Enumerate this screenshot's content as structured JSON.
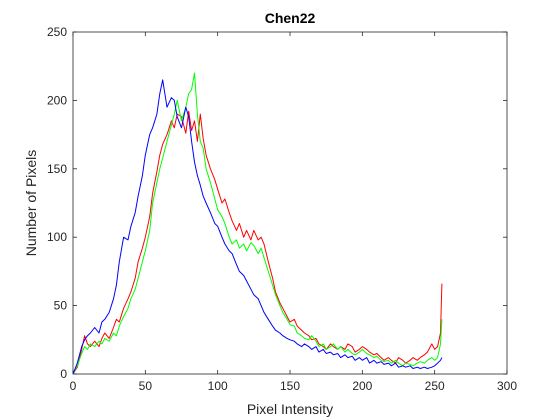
{
  "chart_data": {
    "type": "line",
    "title": "Chen22",
    "xlabel": "Pixel Intensity",
    "ylabel": "Number of Pixels",
    "xlim": [
      0,
      300
    ],
    "ylim": [
      0,
      250
    ],
    "xticks": [
      0,
      50,
      100,
      150,
      200,
      250,
      300
    ],
    "yticks": [
      0,
      50,
      100,
      150,
      200,
      250
    ],
    "xtick_labels": [
      "0",
      "50",
      "100",
      "150",
      "200",
      "250",
      "300"
    ],
    "ytick_labels": [
      "0",
      "50",
      "100",
      "150",
      "200",
      "250"
    ],
    "grid": false,
    "legend": "none",
    "series": [
      {
        "color": "#ff0000",
        "points": [
          [
            0,
            0
          ],
          [
            3,
            5
          ],
          [
            6,
            18
          ],
          [
            8,
            28
          ],
          [
            10,
            22
          ],
          [
            12,
            20
          ],
          [
            15,
            24
          ],
          [
            18,
            20
          ],
          [
            20,
            26
          ],
          [
            22,
            30
          ],
          [
            25,
            26
          ],
          [
            28,
            34
          ],
          [
            30,
            40
          ],
          [
            32,
            38
          ],
          [
            35,
            48
          ],
          [
            38,
            55
          ],
          [
            40,
            60
          ],
          [
            43,
            70
          ],
          [
            45,
            82
          ],
          [
            48,
            92
          ],
          [
            50,
            100
          ],
          [
            53,
            115
          ],
          [
            55,
            132
          ],
          [
            58,
            148
          ],
          [
            60,
            160
          ],
          [
            62,
            168
          ],
          [
            65,
            175
          ],
          [
            68,
            185
          ],
          [
            70,
            180
          ],
          [
            72,
            190
          ],
          [
            75,
            188
          ],
          [
            78,
            176
          ],
          [
            80,
            192
          ],
          [
            82,
            178
          ],
          [
            84,
            185
          ],
          [
            86,
            170
          ],
          [
            88,
            190
          ],
          [
            90,
            172
          ],
          [
            92,
            160
          ],
          [
            95,
            150
          ],
          [
            98,
            142
          ],
          [
            100,
            135
          ],
          [
            103,
            125
          ],
          [
            105,
            128
          ],
          [
            108,
            118
          ],
          [
            110,
            112
          ],
          [
            113,
            105
          ],
          [
            115,
            110
          ],
          [
            118,
            100
          ],
          [
            120,
            105
          ],
          [
            123,
            98
          ],
          [
            125,
            105
          ],
          [
            128,
            98
          ],
          [
            130,
            100
          ],
          [
            132,
            95
          ],
          [
            135,
            82
          ],
          [
            138,
            70
          ],
          [
            140,
            60
          ],
          [
            143,
            52
          ],
          [
            145,
            48
          ],
          [
            148,
            42
          ],
          [
            150,
            38
          ],
          [
            153,
            40
          ],
          [
            155,
            35
          ],
          [
            158,
            32
          ],
          [
            160,
            30
          ],
          [
            163,
            28
          ],
          [
            165,
            25
          ],
          [
            168,
            26
          ],
          [
            170,
            22
          ],
          [
            173,
            20
          ],
          [
            175,
            18
          ],
          [
            178,
            22
          ],
          [
            180,
            20
          ],
          [
            183,
            18
          ],
          [
            185,
            20
          ],
          [
            188,
            18
          ],
          [
            190,
            22
          ],
          [
            193,
            20
          ],
          [
            195,
            16
          ],
          [
            198,
            18
          ],
          [
            200,
            20
          ],
          [
            203,
            18
          ],
          [
            205,
            16
          ],
          [
            208,
            14
          ],
          [
            210,
            15
          ],
          [
            213,
            12
          ],
          [
            215,
            10
          ],
          [
            218,
            12
          ],
          [
            220,
            10
          ],
          [
            223,
            8
          ],
          [
            225,
            12
          ],
          [
            228,
            10
          ],
          [
            230,
            8
          ],
          [
            233,
            10
          ],
          [
            235,
            12
          ],
          [
            238,
            10
          ],
          [
            240,
            12
          ],
          [
            243,
            14
          ],
          [
            245,
            16
          ],
          [
            248,
            22
          ],
          [
            250,
            18
          ],
          [
            252,
            20
          ],
          [
            254,
            30
          ],
          [
            255,
            66
          ]
        ]
      },
      {
        "color": "#00ff00",
        "points": [
          [
            0,
            0
          ],
          [
            3,
            6
          ],
          [
            6,
            15
          ],
          [
            8,
            20
          ],
          [
            10,
            18
          ],
          [
            12,
            22
          ],
          [
            15,
            20
          ],
          [
            18,
            24
          ],
          [
            20,
            22
          ],
          [
            22,
            26
          ],
          [
            25,
            24
          ],
          [
            28,
            30
          ],
          [
            30,
            28
          ],
          [
            32,
            35
          ],
          [
            35,
            42
          ],
          [
            38,
            48
          ],
          [
            40,
            55
          ],
          [
            43,
            62
          ],
          [
            45,
            70
          ],
          [
            48,
            82
          ],
          [
            50,
            90
          ],
          [
            53,
            105
          ],
          [
            55,
            125
          ],
          [
            58,
            140
          ],
          [
            60,
            150
          ],
          [
            62,
            158
          ],
          [
            65,
            170
          ],
          [
            68,
            182
          ],
          [
            70,
            190
          ],
          [
            72,
            200
          ],
          [
            75,
            185
          ],
          [
            78,
            195
          ],
          [
            80,
            205
          ],
          [
            82,
            208
          ],
          [
            84,
            220
          ],
          [
            86,
            190
          ],
          [
            88,
            170
          ],
          [
            90,
            165
          ],
          [
            92,
            150
          ],
          [
            95,
            140
          ],
          [
            98,
            128
          ],
          [
            100,
            120
          ],
          [
            103,
            115
          ],
          [
            105,
            110
          ],
          [
            108,
            100
          ],
          [
            110,
            95
          ],
          [
            113,
            98
          ],
          [
            115,
            92
          ],
          [
            118,
            95
          ],
          [
            120,
            90
          ],
          [
            123,
            96
          ],
          [
            125,
            94
          ],
          [
            128,
            88
          ],
          [
            130,
            92
          ],
          [
            132,
            85
          ],
          [
            135,
            75
          ],
          [
            138,
            65
          ],
          [
            140,
            58
          ],
          [
            143,
            50
          ],
          [
            145,
            45
          ],
          [
            148,
            40
          ],
          [
            150,
            36
          ],
          [
            153,
            35
          ],
          [
            155,
            30
          ],
          [
            158,
            28
          ],
          [
            160,
            26
          ],
          [
            163,
            25
          ],
          [
            165,
            28
          ],
          [
            168,
            24
          ],
          [
            170,
            20
          ],
          [
            173,
            22
          ],
          [
            175,
            18
          ],
          [
            178,
            20
          ],
          [
            180,
            22
          ],
          [
            183,
            18
          ],
          [
            185,
            20
          ],
          [
            188,
            16
          ],
          [
            190,
            18
          ],
          [
            193,
            15
          ],
          [
            195,
            14
          ],
          [
            198,
            16
          ],
          [
            200,
            18
          ],
          [
            203,
            15
          ],
          [
            205,
            14
          ],
          [
            208,
            12
          ],
          [
            210,
            13
          ],
          [
            213,
            10
          ],
          [
            215,
            9
          ],
          [
            218,
            10
          ],
          [
            220,
            8
          ],
          [
            223,
            10
          ],
          [
            225,
            8
          ],
          [
            228,
            6
          ],
          [
            230,
            8
          ],
          [
            233,
            7
          ],
          [
            235,
            6
          ],
          [
            238,
            8
          ],
          [
            240,
            9
          ],
          [
            243,
            8
          ],
          [
            245,
            10
          ],
          [
            248,
            12
          ],
          [
            250,
            10
          ],
          [
            252,
            12
          ],
          [
            254,
            22
          ],
          [
            255,
            40
          ]
        ]
      },
      {
        "color": "#0000ff",
        "points": [
          [
            0,
            0
          ],
          [
            3,
            8
          ],
          [
            6,
            20
          ],
          [
            8,
            25
          ],
          [
            10,
            28
          ],
          [
            12,
            30
          ],
          [
            15,
            34
          ],
          [
            18,
            30
          ],
          [
            20,
            38
          ],
          [
            22,
            40
          ],
          [
            25,
            45
          ],
          [
            28,
            55
          ],
          [
            30,
            65
          ],
          [
            32,
            82
          ],
          [
            35,
            100
          ],
          [
            38,
            98
          ],
          [
            40,
            108
          ],
          [
            43,
            118
          ],
          [
            45,
            130
          ],
          [
            48,
            145
          ],
          [
            50,
            160
          ],
          [
            53,
            175
          ],
          [
            55,
            180
          ],
          [
            58,
            190
          ],
          [
            60,
            205
          ],
          [
            62,
            215
          ],
          [
            65,
            195
          ],
          [
            68,
            202
          ],
          [
            70,
            200
          ],
          [
            72,
            188
          ],
          [
            75,
            180
          ],
          [
            78,
            195
          ],
          [
            80,
            188
          ],
          [
            82,
            170
          ],
          [
            84,
            155
          ],
          [
            86,
            145
          ],
          [
            88,
            138
          ],
          [
            90,
            130
          ],
          [
            92,
            125
          ],
          [
            95,
            118
          ],
          [
            98,
            110
          ],
          [
            100,
            108
          ],
          [
            103,
            100
          ],
          [
            105,
            95
          ],
          [
            108,
            90
          ],
          [
            110,
            88
          ],
          [
            113,
            80
          ],
          [
            115,
            75
          ],
          [
            118,
            72
          ],
          [
            120,
            68
          ],
          [
            123,
            62
          ],
          [
            125,
            58
          ],
          [
            128,
            55
          ],
          [
            130,
            50
          ],
          [
            132,
            45
          ],
          [
            135,
            40
          ],
          [
            138,
            35
          ],
          [
            140,
            32
          ],
          [
            143,
            30
          ],
          [
            145,
            28
          ],
          [
            148,
            26
          ],
          [
            150,
            25
          ],
          [
            153,
            24
          ],
          [
            155,
            22
          ],
          [
            158,
            20
          ],
          [
            160,
            22
          ],
          [
            163,
            20
          ],
          [
            165,
            18
          ],
          [
            168,
            20
          ],
          [
            170,
            16
          ],
          [
            173,
            18
          ],
          [
            175,
            15
          ],
          [
            178,
            16
          ],
          [
            180,
            14
          ],
          [
            183,
            15
          ],
          [
            185,
            12
          ],
          [
            188,
            14
          ],
          [
            190,
            12
          ],
          [
            193,
            13
          ],
          [
            195,
            10
          ],
          [
            198,
            12
          ],
          [
            200,
            10
          ],
          [
            203,
            12
          ],
          [
            205,
            8
          ],
          [
            208,
            10
          ],
          [
            210,
            8
          ],
          [
            213,
            9
          ],
          [
            215,
            7
          ],
          [
            218,
            8
          ],
          [
            220,
            6
          ],
          [
            223,
            8
          ],
          [
            225,
            5
          ],
          [
            228,
            6
          ],
          [
            230,
            5
          ],
          [
            233,
            6
          ],
          [
            235,
            4
          ],
          [
            238,
            5
          ],
          [
            240,
            4
          ],
          [
            243,
            5
          ],
          [
            245,
            4
          ],
          [
            248,
            5
          ],
          [
            250,
            6
          ],
          [
            252,
            8
          ],
          [
            254,
            10
          ],
          [
            255,
            12
          ]
        ]
      }
    ]
  }
}
